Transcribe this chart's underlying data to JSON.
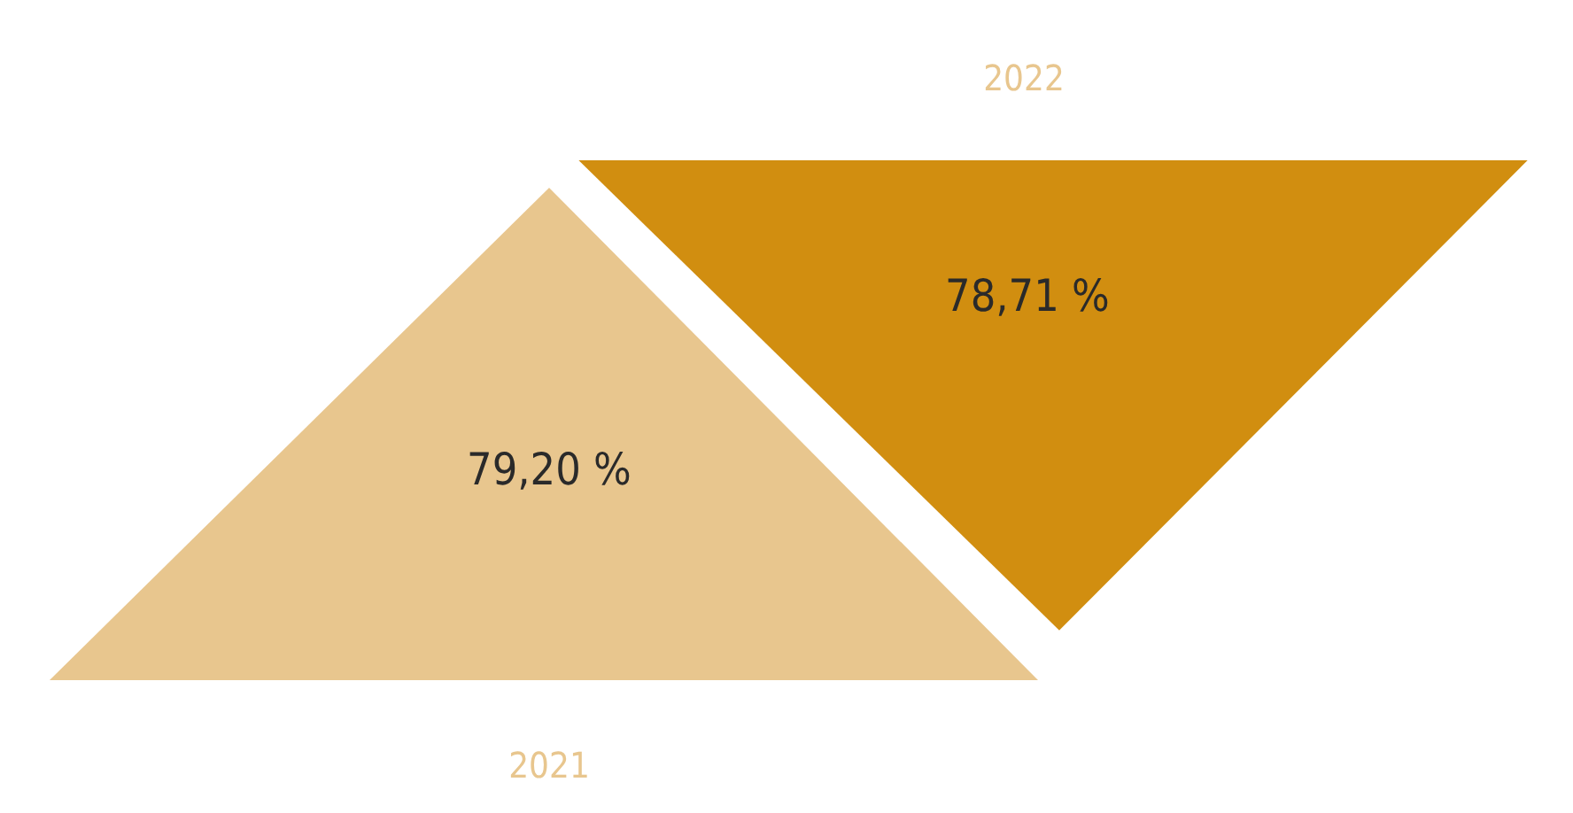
{
  "chart_data": {
    "type": "other",
    "categories": [
      "2021",
      "2022"
    ],
    "values": [
      79.2,
      78.71
    ],
    "value_labels": [
      "79,20 %",
      "78,71 %"
    ],
    "colors": [
      "#e8c68e",
      "#d18e10"
    ]
  }
}
